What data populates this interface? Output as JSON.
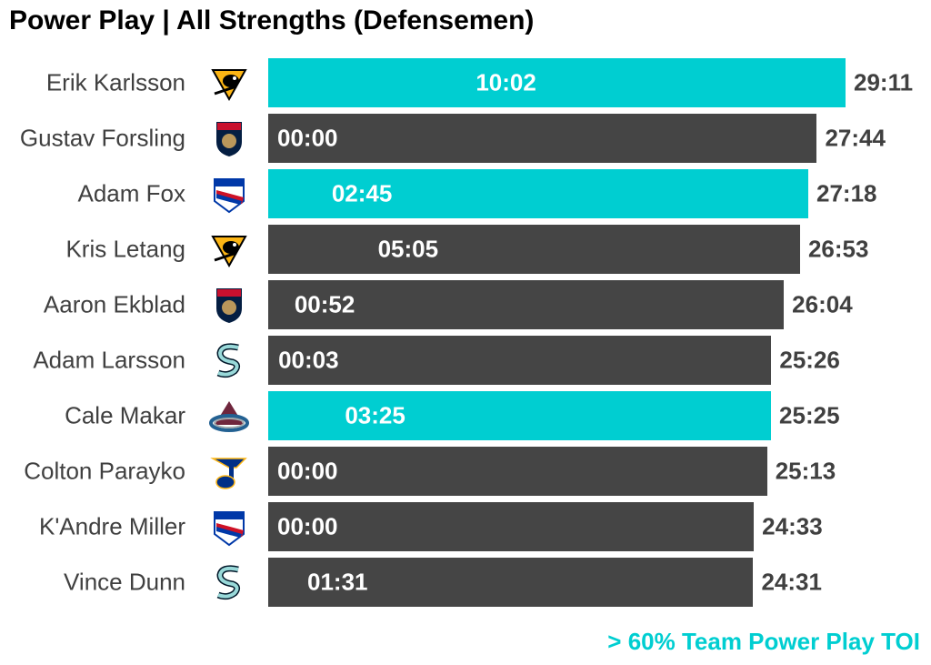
{
  "title": "Power Play | All Strengths (Defensemen)",
  "legend": "> 60% Team Power Play TOI",
  "colors": {
    "highlight": "#00CED1",
    "normal": "#454545"
  },
  "chart_data": {
    "type": "bar",
    "orientation": "horizontal",
    "title": "Power Play | All Strengths (Defensemen)",
    "categories": [
      "Erik Karlsson",
      "Gustav Forsling",
      "Adam Fox",
      "Kris Letang",
      "Aaron Ekblad",
      "Adam Larsson",
      "Cale Makar",
      "Colton Parayko",
      "K'Andre Miller",
      "Vince Dunn"
    ],
    "rows": [
      {
        "name": "Erik Karlsson",
        "logo": "penguins-logo",
        "toi": "29:11",
        "pp": "10:02",
        "highlight": true
      },
      {
        "name": "Gustav Forsling",
        "logo": "panthers-logo",
        "toi": "27:44",
        "pp": "00:00",
        "highlight": false
      },
      {
        "name": "Adam Fox",
        "logo": "rangers-logo",
        "toi": "27:18",
        "pp": "02:45",
        "highlight": true
      },
      {
        "name": "Kris Letang",
        "logo": "penguins-logo",
        "toi": "26:53",
        "pp": "05:05",
        "highlight": false
      },
      {
        "name": "Aaron Ekblad",
        "logo": "panthers-logo",
        "toi": "26:04",
        "pp": "00:52",
        "highlight": false
      },
      {
        "name": "Adam Larsson",
        "logo": "kraken-logo",
        "toi": "25:26",
        "pp": "00:03",
        "highlight": false
      },
      {
        "name": "Cale Makar",
        "logo": "avalanche-logo",
        "toi": "25:25",
        "pp": "03:25",
        "highlight": true
      },
      {
        "name": "Colton Parayko",
        "logo": "blues-logo",
        "toi": "25:13",
        "pp": "00:00",
        "highlight": false
      },
      {
        "name": "K'Andre Miller",
        "logo": "rangers-logo",
        "toi": "24:33",
        "pp": "00:00",
        "highlight": false
      },
      {
        "name": "Vince Dunn",
        "logo": "kraken-logo",
        "toi": "24:31",
        "pp": "01:31",
        "highlight": false
      }
    ],
    "legend": "> 60% Team Power Play TOI"
  }
}
